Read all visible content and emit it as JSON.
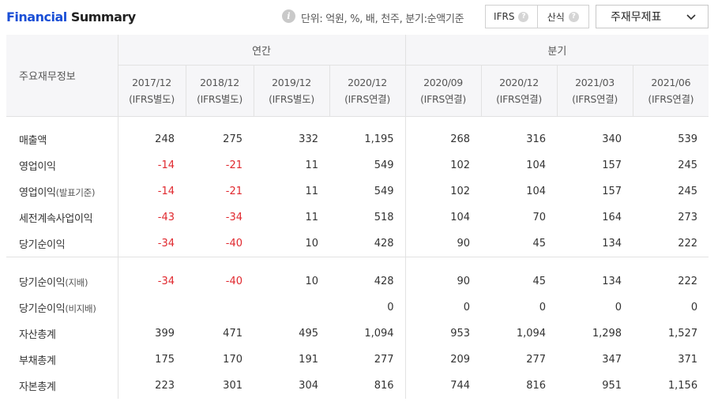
{
  "header": {
    "title_part1": "Financial",
    "title_part2": "Summary",
    "unit_text": "단위: 억원, %, 배, 천주, 분기:순액기준",
    "toggle": [
      {
        "label": "IFRS"
      },
      {
        "label": "산식"
      }
    ],
    "help_symbol": "?",
    "dropdown_value": "주재무제표",
    "info_symbol": "i"
  },
  "table": {
    "corner_label": "주요재무정보",
    "groups": {
      "annual": "연간",
      "quarterly": "분기"
    },
    "periods": [
      {
        "date": "2017/12",
        "basis": "(IFRS별도)"
      },
      {
        "date": "2018/12",
        "basis": "(IFRS별도)"
      },
      {
        "date": "2019/12",
        "basis": "(IFRS별도)"
      },
      {
        "date": "2020/12",
        "basis": "(IFRS연결)"
      },
      {
        "date": "2020/09",
        "basis": "(IFRS연결)"
      },
      {
        "date": "2020/12",
        "basis": "(IFRS연결)"
      },
      {
        "date": "2021/03",
        "basis": "(IFRS연결)"
      },
      {
        "date": "2021/06",
        "basis": "(IFRS연결)"
      }
    ],
    "rows": [
      {
        "label": "매출액",
        "suffix": "",
        "values": [
          "248",
          "275",
          "332",
          "1,195",
          "268",
          "316",
          "340",
          "539"
        ]
      },
      {
        "label": "영업이익",
        "suffix": "",
        "values": [
          "-14",
          "-21",
          "11",
          "549",
          "102",
          "104",
          "157",
          "245"
        ]
      },
      {
        "label": "영업이익",
        "suffix": "(발표기준)",
        "values": [
          "-14",
          "-21",
          "11",
          "549",
          "102",
          "104",
          "157",
          "245"
        ]
      },
      {
        "label": "세전계속사업이익",
        "suffix": "",
        "values": [
          "-43",
          "-34",
          "11",
          "518",
          "104",
          "70",
          "164",
          "273"
        ]
      },
      {
        "label": "당기순이익",
        "suffix": "",
        "values": [
          "-34",
          "-40",
          "10",
          "428",
          "90",
          "45",
          "134",
          "222"
        ]
      },
      {
        "label": "당기순이익",
        "suffix": "(지배)",
        "values": [
          "-34",
          "-40",
          "10",
          "428",
          "90",
          "45",
          "134",
          "222"
        ]
      },
      {
        "label": "당기순이익",
        "suffix": "(비지배)",
        "values": [
          "",
          "",
          "",
          "0",
          "0",
          "0",
          "0",
          "0"
        ]
      },
      {
        "label": "자산총계",
        "suffix": "",
        "values": [
          "399",
          "471",
          "495",
          "1,094",
          "953",
          "1,094",
          "1,298",
          "1,527"
        ]
      },
      {
        "label": "부채총계",
        "suffix": "",
        "values": [
          "175",
          "170",
          "191",
          "277",
          "209",
          "277",
          "347",
          "371"
        ]
      },
      {
        "label": "자본총계",
        "suffix": "",
        "values": [
          "223",
          "301",
          "304",
          "816",
          "744",
          "816",
          "951",
          "1,156"
        ]
      }
    ]
  },
  "colors": {
    "accent": "#1a4fd6",
    "negative": "#e0282e"
  }
}
